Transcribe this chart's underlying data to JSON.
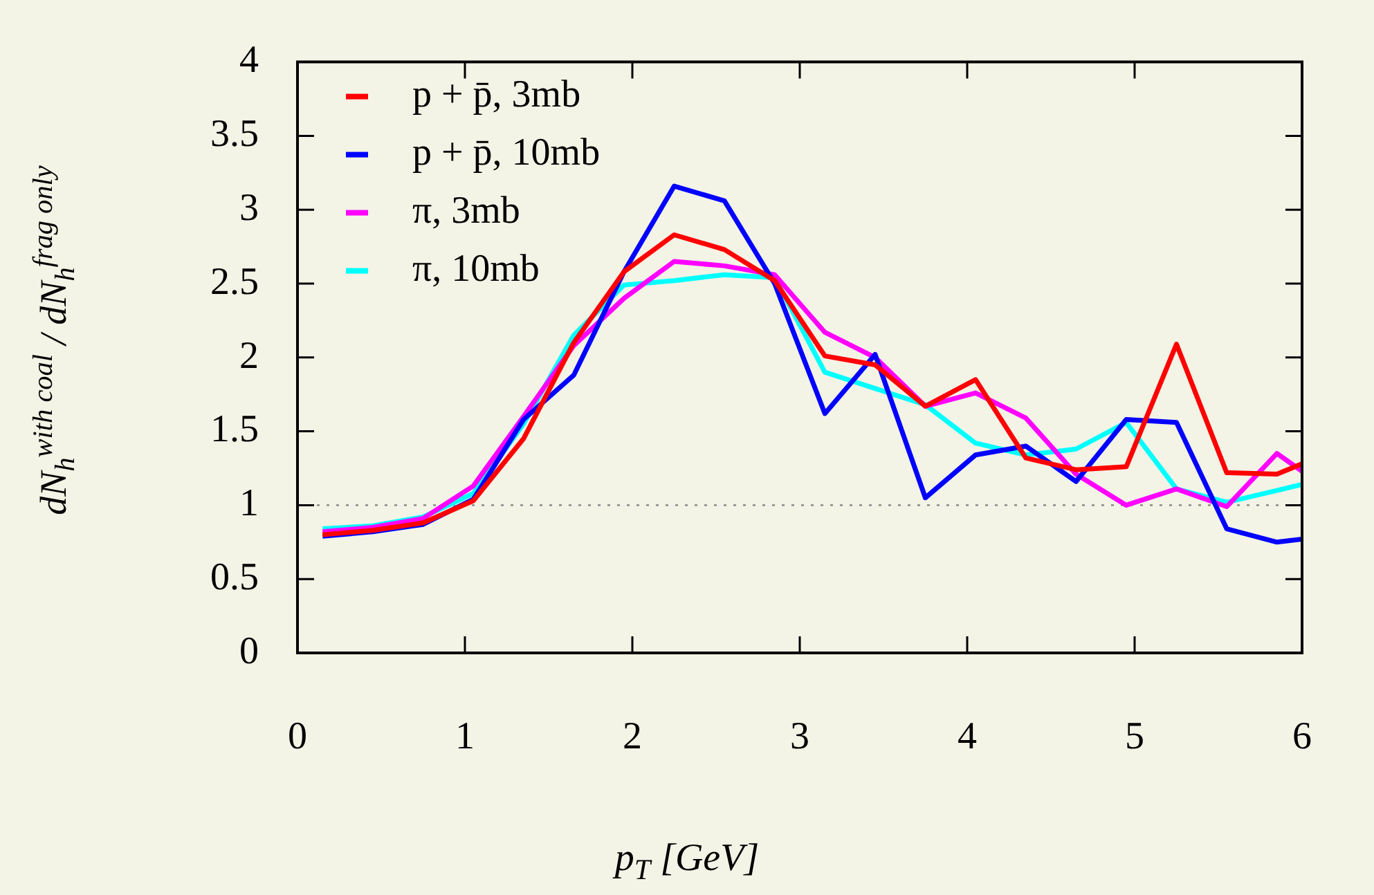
{
  "chart_data": {
    "type": "line",
    "xlabel": "p$_{T}$ [GeV]",
    "ylabel": "dN$_{h}$$^{with coal}$ / dN$_{h}$$^{frag only}$",
    "x": [
      0.15,
      0.45,
      0.75,
      1.05,
      1.35,
      1.65,
      1.95,
      2.25,
      2.55,
      2.85,
      3.15,
      3.45,
      3.75,
      4.05,
      4.35,
      4.65,
      4.95,
      5.25,
      5.55,
      5.85,
      6.0
    ],
    "series": [
      {
        "name": "p + p̄, 3mb",
        "color": "#ff0000",
        "values": [
          0.8,
          0.83,
          0.88,
          1.03,
          1.45,
          2.1,
          2.58,
          2.83,
          2.73,
          2.52,
          2.01,
          1.95,
          1.67,
          1.85,
          1.32,
          1.24,
          1.26,
          2.09,
          1.22,
          1.21,
          1.28
        ]
      },
      {
        "name": "p + p̄, 10mb",
        "color": "#0000ff",
        "values": [
          0.79,
          0.82,
          0.87,
          1.04,
          1.58,
          1.88,
          2.58,
          3.16,
          3.06,
          2.5,
          1.62,
          2.02,
          1.05,
          1.34,
          1.4,
          1.16,
          1.58,
          1.56,
          0.84,
          0.75,
          0.77
        ]
      },
      {
        "name": "π, 3mb",
        "color": "#ff00ff",
        "values": [
          0.82,
          0.85,
          0.91,
          1.13,
          1.6,
          2.08,
          2.4,
          2.65,
          2.62,
          2.56,
          2.17,
          2.0,
          1.67,
          1.76,
          1.59,
          1.21,
          1.0,
          1.11,
          0.99,
          1.35,
          1.23
        ]
      },
      {
        "name": "π, 10mb",
        "color": "#00ffff",
        "values": [
          0.84,
          0.86,
          0.92,
          1.08,
          1.55,
          2.15,
          2.49,
          2.52,
          2.56,
          2.54,
          1.9,
          1.79,
          1.68,
          1.42,
          1.34,
          1.38,
          1.56,
          1.11,
          1.02,
          1.1,
          1.14
        ]
      }
    ],
    "xlim": [
      0,
      6
    ],
    "xticks": [
      0,
      1,
      2,
      3,
      4,
      5,
      6
    ],
    "ylim": [
      0,
      4
    ],
    "yticks": [
      0,
      0.5,
      1,
      1.5,
      2,
      2.5,
      3,
      3.5,
      4
    ],
    "ref_lines": [
      {
        "axis": "y",
        "value": 1,
        "color": "#808080",
        "line_style": "dotted"
      }
    ],
    "grid": false,
    "legend": "top left",
    "marker": "none",
    "line_style": "solid"
  }
}
